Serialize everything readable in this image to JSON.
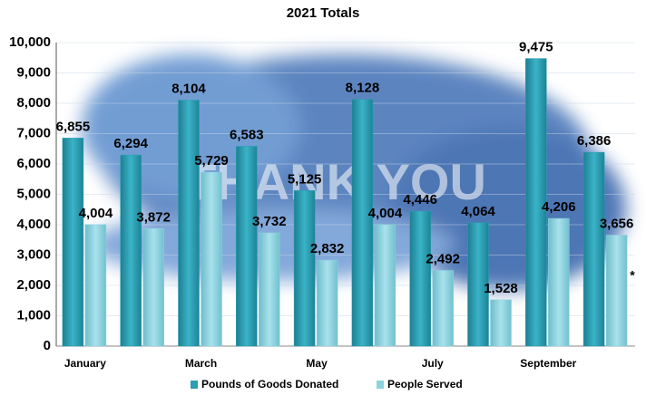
{
  "chart_data": {
    "type": "bar",
    "title": "2021 Totals",
    "categories": [
      "January",
      null,
      "March",
      null,
      "May",
      null,
      "July",
      null,
      "September",
      null
    ],
    "series": [
      {
        "name": "Pounds of Goods Donated",
        "color": "#2a9fb3",
        "values": [
          6855,
          6294,
          8104,
          6583,
          5125,
          8128,
          4446,
          4064,
          9475,
          6386
        ],
        "value_labels": [
          "6,855",
          "6,294",
          "8,104",
          "6,583",
          "5,125",
          "8,128",
          "4,446",
          "4,064",
          "9,475",
          "6,386"
        ]
      },
      {
        "name": "People Served",
        "color": "#8dd2df",
        "values": [
          4004,
          3872,
          5729,
          3732,
          2832,
          4004,
          2492,
          1528,
          4206,
          3656
        ],
        "value_labels": [
          "4,004",
          "3,872",
          "5,729",
          "3,732",
          "2,832",
          "4,004",
          "2,492",
          "1,528",
          "4,206",
          "3,656"
        ]
      }
    ],
    "ylim": [
      0,
      10000
    ],
    "yticks": [
      0,
      {
        "value": 1000,
        "label": "1,000"
      },
      {
        "value": 2000,
        "label": "2,000"
      },
      {
        "value": 3000,
        "label": "3,000"
      },
      {
        "value": 4000,
        "label": "4,000"
      },
      {
        "value": 5000,
        "label": "5,000"
      },
      {
        "value": 6000,
        "label": "6,000"
      },
      {
        "value": 7000,
        "label": "7,000"
      },
      {
        "value": 8000,
        "label": "8,000"
      },
      {
        "value": 9000,
        "label": "9,000"
      },
      {
        "value": 10000,
        "label": "10,000"
      }
    ],
    "grid": true,
    "legend": "bottom",
    "annotation": "*",
    "background_text": "THANK YOU"
  }
}
